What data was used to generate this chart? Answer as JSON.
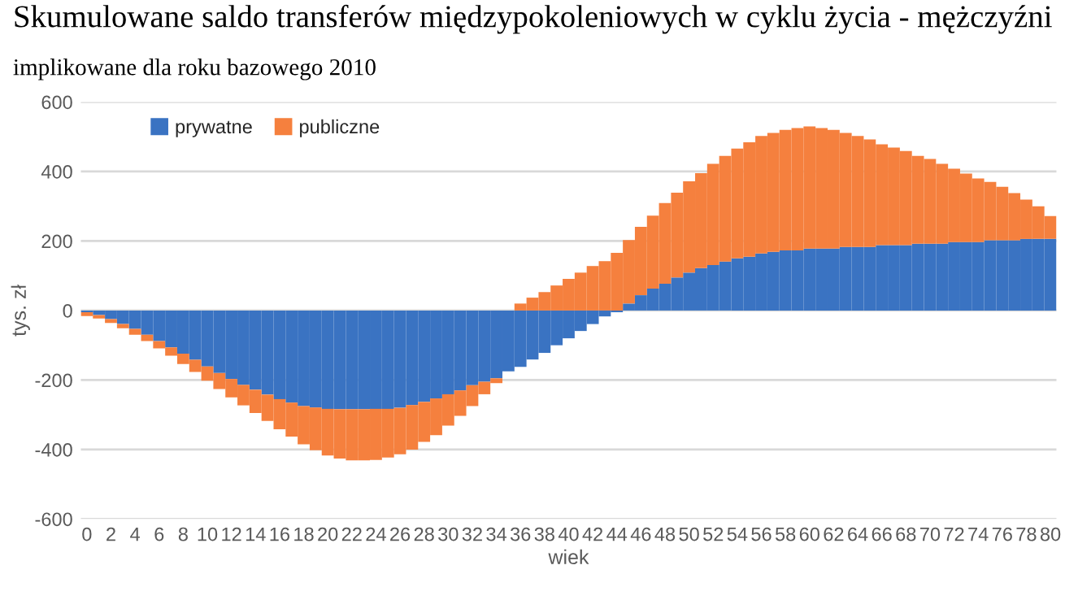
{
  "chart_data": {
    "type": "bar",
    "title": "Skumulowane saldo transferów międzypokoleniowych w cyklu życia - mężczyźni",
    "subtitle": "implikowane dla roku bazowego 2010",
    "xlabel": "wiek",
    "ylabel": "tys. zł",
    "categories": [
      "0",
      null,
      "2",
      null,
      "4",
      null,
      "6",
      null,
      "8",
      null,
      "10",
      null,
      "12",
      null,
      "14",
      null,
      "16",
      null,
      "18",
      null,
      "20",
      null,
      "22",
      null,
      "24",
      null,
      "26",
      null,
      "28",
      null,
      "30",
      null,
      "32",
      null,
      "34",
      null,
      "36",
      null,
      "38",
      null,
      "40",
      null,
      "42",
      null,
      "44",
      null,
      "46",
      null,
      "48",
      null,
      "50",
      null,
      "52",
      null,
      "54",
      null,
      "56",
      null,
      "58",
      null,
      "60",
      null,
      "62",
      null,
      "64",
      null,
      "66",
      null,
      "68",
      null,
      "70",
      null,
      "72",
      null,
      "74",
      null,
      "76",
      null,
      "78",
      null,
      "80"
    ],
    "stacked": true,
    "series": [
      {
        "name": "prywatne",
        "color": "#3a73c2",
        "values": [
          -5,
          -13,
          -25,
          -39,
          -53,
          -70,
          -88,
          -106,
          -124,
          -142,
          -161,
          -180,
          -197,
          -214,
          -228,
          -242,
          -255,
          -265,
          -275,
          -279,
          -283,
          -284,
          -284,
          -284,
          -283,
          -283,
          -280,
          -272,
          -263,
          -253,
          -241,
          -230,
          -215,
          -205,
          -195,
          -175,
          -162,
          -141,
          -122,
          -100,
          -80,
          -59,
          -39,
          -17,
          -5,
          20,
          44,
          63,
          77,
          95,
          109,
          122,
          131,
          141,
          150,
          155,
          164,
          169,
          173,
          173,
          178,
          178,
          178,
          183,
          183,
          183,
          188,
          188,
          188,
          192,
          192,
          192,
          197,
          197,
          197,
          202,
          202,
          202,
          206,
          206,
          206
        ]
      },
      {
        "name": "publiczne",
        "color": "#f5803e",
        "values": [
          -11,
          -10,
          -11,
          -12,
          -17,
          -18,
          -21,
          -24,
          -30,
          -35,
          -41,
          -46,
          -53,
          -59,
          -67,
          -76,
          -87,
          -98,
          -110,
          -123,
          -134,
          -142,
          -147,
          -147,
          -147,
          -140,
          -134,
          -128,
          -115,
          -106,
          -90,
          -73,
          -60,
          -36,
          -14,
          0,
          20,
          37,
          53,
          72,
          91,
          109,
          128,
          142,
          166,
          183,
          197,
          210,
          232,
          244,
          263,
          273,
          291,
          304,
          316,
          329,
          338,
          342,
          347,
          352,
          352,
          347,
          342,
          328,
          319,
          309,
          290,
          281,
          271,
          253,
          244,
          230,
          211,
          197,
          183,
          168,
          154,
          136,
          113,
          94,
          66
        ]
      }
    ],
    "ylim": [
      -600,
      600
    ],
    "yticks": [
      -600,
      -400,
      -200,
      0,
      200,
      400,
      600
    ],
    "grid": "y",
    "legend": "top left"
  }
}
